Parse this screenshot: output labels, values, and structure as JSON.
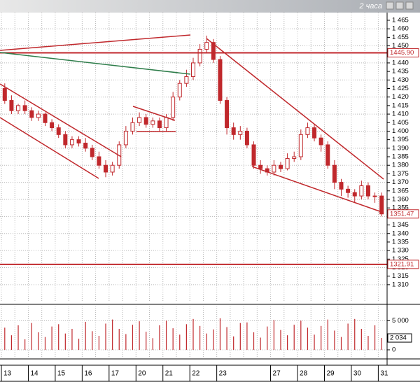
{
  "chart_data": {
    "type": "candlestick",
    "title": "2 часа",
    "categories": [
      "13",
      null,
      null,
      null,
      "14",
      null,
      null,
      null,
      "15",
      null,
      null,
      null,
      "16",
      null,
      null,
      null,
      "17",
      null,
      null,
      null,
      "20",
      null,
      null,
      null,
      "21",
      null,
      null,
      null,
      "22",
      null,
      null,
      null,
      "23",
      null,
      null,
      null,
      null,
      null,
      null,
      null,
      "27",
      null,
      null,
      null,
      "28",
      null,
      null,
      null,
      "29",
      null,
      null,
      null,
      "30",
      null,
      null,
      null,
      "31"
    ],
    "open": [
      1425,
      1418,
      1412,
      1415,
      1412,
      1408,
      1410,
      1405,
      1402,
      1398,
      1392,
      1395,
      1393,
      1390,
      1385,
      1380,
      1376,
      1380,
      1392,
      1400,
      1405,
      1408,
      1404,
      1406,
      1402,
      1408,
      1420,
      1428,
      1432,
      1440,
      1448,
      1452,
      1442,
      1418,
      1402,
      1398,
      1400,
      1392,
      1380,
      1378,
      1376,
      1380,
      1378,
      1384,
      1385,
      1398,
      1402,
      1396,
      1392,
      1380,
      1370,
      1366,
      1364,
      1362,
      1368,
      1362,
      1362
    ],
    "high": [
      1428,
      1421,
      1416,
      1418,
      1414,
      1412,
      1411,
      1407,
      1404,
      1400,
      1397,
      1397,
      1396,
      1392,
      1388,
      1383,
      1382,
      1394,
      1403,
      1408,
      1411,
      1410,
      1408,
      1408,
      1410,
      1423,
      1430,
      1436,
      1443,
      1451,
      1456,
      1454,
      1444,
      1420,
      1405,
      1403,
      1402,
      1394,
      1383,
      1380,
      1383,
      1382,
      1387,
      1388,
      1401,
      1405,
      1404,
      1398,
      1394,
      1383,
      1372,
      1368,
      1366,
      1371,
      1370,
      1364,
      1364
    ],
    "low": [
      1416,
      1410,
      1410,
      1410,
      1406,
      1406,
      1403,
      1400,
      1396,
      1390,
      1390,
      1391,
      1388,
      1383,
      1378,
      1373,
      1374,
      1378,
      1390,
      1398,
      1403,
      1402,
      1402,
      1400,
      1400,
      1406,
      1418,
      1426,
      1430,
      1438,
      1446,
      1440,
      1416,
      1398,
      1395,
      1395,
      1390,
      1378,
      1375,
      1374,
      1374,
      1376,
      1377,
      1382,
      1383,
      1396,
      1394,
      1388,
      1378,
      1366,
      1362,
      1361,
      1358,
      1360,
      1360,
      1358,
      1350
    ],
    "close": [
      1418,
      1412,
      1415,
      1412,
      1408,
      1410,
      1405,
      1402,
      1398,
      1392,
      1395,
      1393,
      1390,
      1385,
      1380,
      1376,
      1380,
      1392,
      1400,
      1405,
      1408,
      1404,
      1406,
      1402,
      1408,
      1420,
      1428,
      1432,
      1440,
      1448,
      1452,
      1442,
      1418,
      1402,
      1398,
      1400,
      1392,
      1380,
      1378,
      1376,
      1380,
      1378,
      1384,
      1385,
      1398,
      1402,
      1396,
      1392,
      1380,
      1370,
      1366,
      1364,
      1362,
      1368,
      1362,
      1362,
      1351.47
    ],
    "color": "#c0282c",
    "ylim": [
      1299.7,
      1469.5
    ],
    "yticks": [
      {
        "value": 1310,
        "label": "1 310"
      },
      {
        "value": 1315,
        "label": "1 315"
      },
      {
        "value": 1320,
        "label": "1 320"
      },
      {
        "value": 1325,
        "label": "1 325"
      },
      {
        "value": 1330,
        "label": "1 330"
      },
      {
        "value": 1335,
        "label": "1 335"
      },
      {
        "value": 1340,
        "label": "1 340"
      },
      {
        "value": 1345,
        "label": "1 345"
      },
      {
        "value": 1350,
        "label": "1 350"
      },
      {
        "value": 1355,
        "label": "1 355"
      },
      {
        "value": 1360,
        "label": "1 360"
      },
      {
        "value": 1365,
        "label": "1 365"
      },
      {
        "value": 1370,
        "label": "1 370"
      },
      {
        "value": 1375,
        "label": "1 375"
      },
      {
        "value": 1380,
        "label": "1 380"
      },
      {
        "value": 1385,
        "label": "1 385"
      },
      {
        "value": 1390,
        "label": "1 390"
      },
      {
        "value": 1395,
        "label": "1 395"
      },
      {
        "value": 1400,
        "label": "1 400"
      },
      {
        "value": 1405,
        "label": "1 405"
      },
      {
        "value": 1410,
        "label": "1 410"
      },
      {
        "value": 1415,
        "label": "1 415"
      },
      {
        "value": 1420,
        "label": "1 420"
      },
      {
        "value": 1425,
        "label": "1 425"
      },
      {
        "value": 1430,
        "label": "1 430"
      },
      {
        "value": 1435,
        "label": "1 435"
      },
      {
        "value": 1440,
        "label": "1 440"
      },
      {
        "value": 1445,
        "label": "1 445"
      },
      {
        "value": 1450,
        "label": "1 450"
      },
      {
        "value": 1455,
        "label": "1 455"
      },
      {
        "value": 1460,
        "label": "1 460"
      },
      {
        "value": 1465,
        "label": "1 465"
      }
    ],
    "price_lines": [
      {
        "value": 1445.9,
        "label": "1445.90"
      },
      1351.47,
      1321.91
    ],
    "grid": true,
    "volume": {
      "values": [
        3800,
        2500,
        4200,
        1800,
        4600,
        3000,
        2200,
        4000,
        4400,
        2800,
        3600,
        1900,
        4800,
        3200,
        2400,
        4500,
        5200,
        3600,
        2700,
        4300,
        4900,
        3100,
        2000,
        4200,
        5000,
        3700,
        2600,
        4400,
        5300,
        4100,
        2800,
        3500,
        5400,
        3900,
        2300,
        4600,
        4700,
        3000,
        2100,
        4000,
        5100,
        3400,
        2500,
        4300,
        5000,
        3800,
        2600,
        4100,
        5200,
        3300,
        2200,
        4500,
        5300,
        3600,
        2400,
        4200,
        2034
      ],
      "last_label": "2 034",
      "ylim": [
        0,
        7200
      ],
      "yticks": [
        0,
        {
          "value": 5000,
          "label": "5 000"
        }
      ]
    }
  }
}
